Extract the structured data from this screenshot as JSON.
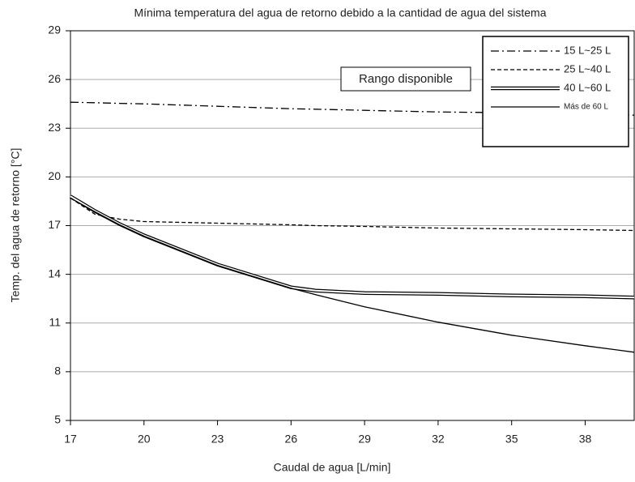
{
  "chart_data": {
    "type": "line",
    "title": "Mínima temperatura del agua de retorno debido a la cantidad de agua del sistema",
    "xlabel": "Caudal de agua [L/min]",
    "ylabel": "Temp. del agua de retorno [°C]",
    "annotation": "Rango disponible",
    "x": [
      17,
      18,
      19,
      20,
      23,
      26,
      27,
      29,
      32,
      35,
      38,
      40
    ],
    "xlim": [
      17,
      40
    ],
    "xticks": [
      17,
      20,
      23,
      26,
      29,
      32,
      35,
      38
    ],
    "ylim": [
      5,
      29
    ],
    "yticks": [
      5,
      8,
      11,
      14,
      17,
      20,
      23,
      26,
      29
    ],
    "grid": true,
    "legend": "upper right",
    "series": [
      {
        "name": "15 L~25 L",
        "color": "#000000",
        "style": "dashdot",
        "values": [
          24.6,
          24.57,
          24.53,
          24.5,
          24.35,
          24.2,
          24.17,
          24.1,
          24.0,
          23.95,
          23.9,
          23.8
        ]
      },
      {
        "name": "25 L~40 L",
        "color": "#000000",
        "style": "dashed",
        "values": [
          18.7,
          17.7,
          17.4,
          17.25,
          17.15,
          17.05,
          17.0,
          16.95,
          16.85,
          16.8,
          16.75,
          16.7
        ]
      },
      {
        "name": "40 L~60 L",
        "color": "#000000",
        "style": "double",
        "values": [
          18.8,
          17.9,
          17.1,
          16.4,
          14.6,
          13.2,
          13.0,
          12.85,
          12.8,
          12.7,
          12.65,
          12.57
        ]
      },
      {
        "name": "Más de 60 L",
        "color": "#000000",
        "style": "solid",
        "values": [
          18.7,
          17.85,
          17.05,
          16.35,
          14.55,
          13.15,
          12.75,
          12.0,
          11.05,
          10.25,
          9.6,
          9.2
        ]
      }
    ]
  }
}
